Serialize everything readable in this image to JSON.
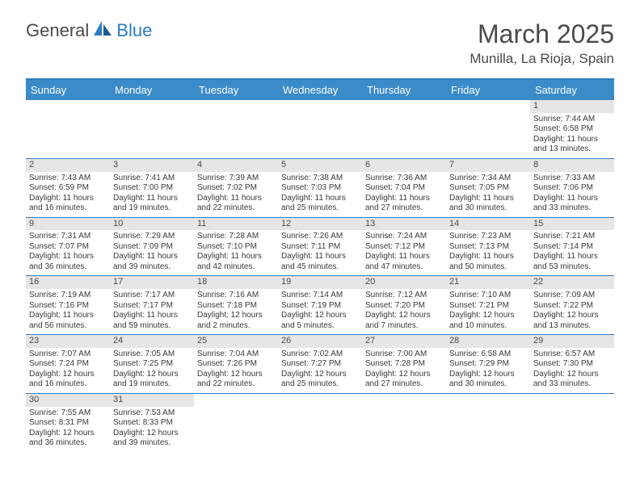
{
  "brand": {
    "part1": "General",
    "part2": "Blue"
  },
  "title": "March 2025",
  "location": "Munilla, La Rioja, Spain",
  "header_bg": "#3b8bc9",
  "accent": "#2d7cc1",
  "daynum_bg": "#e6e6e6",
  "text_color": "#3a3a3a",
  "day_headers": [
    "Sunday",
    "Monday",
    "Tuesday",
    "Wednesday",
    "Thursday",
    "Friday",
    "Saturday"
  ],
  "weeks": [
    [
      null,
      null,
      null,
      null,
      null,
      null,
      {
        "num": "1",
        "sunrise": "Sunrise: 7:44 AM",
        "sunset": "Sunset: 6:58 PM",
        "daylight": "Daylight: 11 hours and 13 minutes."
      }
    ],
    [
      {
        "num": "2",
        "sunrise": "Sunrise: 7:43 AM",
        "sunset": "Sunset: 6:59 PM",
        "daylight": "Daylight: 11 hours and 16 minutes."
      },
      {
        "num": "3",
        "sunrise": "Sunrise: 7:41 AM",
        "sunset": "Sunset: 7:00 PM",
        "daylight": "Daylight: 11 hours and 19 minutes."
      },
      {
        "num": "4",
        "sunrise": "Sunrise: 7:39 AM",
        "sunset": "Sunset: 7:02 PM",
        "daylight": "Daylight: 11 hours and 22 minutes."
      },
      {
        "num": "5",
        "sunrise": "Sunrise: 7:38 AM",
        "sunset": "Sunset: 7:03 PM",
        "daylight": "Daylight: 11 hours and 25 minutes."
      },
      {
        "num": "6",
        "sunrise": "Sunrise: 7:36 AM",
        "sunset": "Sunset: 7:04 PM",
        "daylight": "Daylight: 11 hours and 27 minutes."
      },
      {
        "num": "7",
        "sunrise": "Sunrise: 7:34 AM",
        "sunset": "Sunset: 7:05 PM",
        "daylight": "Daylight: 11 hours and 30 minutes."
      },
      {
        "num": "8",
        "sunrise": "Sunrise: 7:33 AM",
        "sunset": "Sunset: 7:06 PM",
        "daylight": "Daylight: 11 hours and 33 minutes."
      }
    ],
    [
      {
        "num": "9",
        "sunrise": "Sunrise: 7:31 AM",
        "sunset": "Sunset: 7:07 PM",
        "daylight": "Daylight: 11 hours and 36 minutes."
      },
      {
        "num": "10",
        "sunrise": "Sunrise: 7:29 AM",
        "sunset": "Sunset: 7:09 PM",
        "daylight": "Daylight: 11 hours and 39 minutes."
      },
      {
        "num": "11",
        "sunrise": "Sunrise: 7:28 AM",
        "sunset": "Sunset: 7:10 PM",
        "daylight": "Daylight: 11 hours and 42 minutes."
      },
      {
        "num": "12",
        "sunrise": "Sunrise: 7:26 AM",
        "sunset": "Sunset: 7:11 PM",
        "daylight": "Daylight: 11 hours and 45 minutes."
      },
      {
        "num": "13",
        "sunrise": "Sunrise: 7:24 AM",
        "sunset": "Sunset: 7:12 PM",
        "daylight": "Daylight: 11 hours and 47 minutes."
      },
      {
        "num": "14",
        "sunrise": "Sunrise: 7:23 AM",
        "sunset": "Sunset: 7:13 PM",
        "daylight": "Daylight: 11 hours and 50 minutes."
      },
      {
        "num": "15",
        "sunrise": "Sunrise: 7:21 AM",
        "sunset": "Sunset: 7:14 PM",
        "daylight": "Daylight: 11 hours and 53 minutes."
      }
    ],
    [
      {
        "num": "16",
        "sunrise": "Sunrise: 7:19 AM",
        "sunset": "Sunset: 7:16 PM",
        "daylight": "Daylight: 11 hours and 56 minutes."
      },
      {
        "num": "17",
        "sunrise": "Sunrise: 7:17 AM",
        "sunset": "Sunset: 7:17 PM",
        "daylight": "Daylight: 11 hours and 59 minutes."
      },
      {
        "num": "18",
        "sunrise": "Sunrise: 7:16 AM",
        "sunset": "Sunset: 7:18 PM",
        "daylight": "Daylight: 12 hours and 2 minutes."
      },
      {
        "num": "19",
        "sunrise": "Sunrise: 7:14 AM",
        "sunset": "Sunset: 7:19 PM",
        "daylight": "Daylight: 12 hours and 5 minutes."
      },
      {
        "num": "20",
        "sunrise": "Sunrise: 7:12 AM",
        "sunset": "Sunset: 7:20 PM",
        "daylight": "Daylight: 12 hours and 7 minutes."
      },
      {
        "num": "21",
        "sunrise": "Sunrise: 7:10 AM",
        "sunset": "Sunset: 7:21 PM",
        "daylight": "Daylight: 12 hours and 10 minutes."
      },
      {
        "num": "22",
        "sunrise": "Sunrise: 7:09 AM",
        "sunset": "Sunset: 7:22 PM",
        "daylight": "Daylight: 12 hours and 13 minutes."
      }
    ],
    [
      {
        "num": "23",
        "sunrise": "Sunrise: 7:07 AM",
        "sunset": "Sunset: 7:24 PM",
        "daylight": "Daylight: 12 hours and 16 minutes."
      },
      {
        "num": "24",
        "sunrise": "Sunrise: 7:05 AM",
        "sunset": "Sunset: 7:25 PM",
        "daylight": "Daylight: 12 hours and 19 minutes."
      },
      {
        "num": "25",
        "sunrise": "Sunrise: 7:04 AM",
        "sunset": "Sunset: 7:26 PM",
        "daylight": "Daylight: 12 hours and 22 minutes."
      },
      {
        "num": "26",
        "sunrise": "Sunrise: 7:02 AM",
        "sunset": "Sunset: 7:27 PM",
        "daylight": "Daylight: 12 hours and 25 minutes."
      },
      {
        "num": "27",
        "sunrise": "Sunrise: 7:00 AM",
        "sunset": "Sunset: 7:28 PM",
        "daylight": "Daylight: 12 hours and 27 minutes."
      },
      {
        "num": "28",
        "sunrise": "Sunrise: 6:58 AM",
        "sunset": "Sunset: 7:29 PM",
        "daylight": "Daylight: 12 hours and 30 minutes."
      },
      {
        "num": "29",
        "sunrise": "Sunrise: 6:57 AM",
        "sunset": "Sunset: 7:30 PM",
        "daylight": "Daylight: 12 hours and 33 minutes."
      }
    ],
    [
      {
        "num": "30",
        "sunrise": "Sunrise: 7:55 AM",
        "sunset": "Sunset: 8:31 PM",
        "daylight": "Daylight: 12 hours and 36 minutes."
      },
      {
        "num": "31",
        "sunrise": "Sunrise: 7:53 AM",
        "sunset": "Sunset: 8:33 PM",
        "daylight": "Daylight: 12 hours and 39 minutes."
      },
      null,
      null,
      null,
      null,
      null
    ]
  ]
}
